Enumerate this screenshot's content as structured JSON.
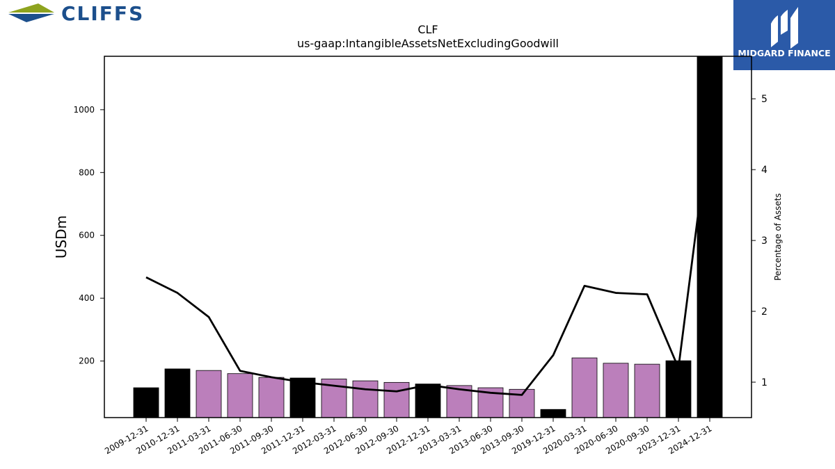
{
  "logos": {
    "left_brand": "CLIFFS",
    "right_brand": "MIDGARD FINANCE",
    "right_brand_bg": "#2b5aa8"
  },
  "chart_data": {
    "type": "bar",
    "title": "CLF",
    "subtitle": "us-gaap:IntangibleAssetsNetExcludingGoodwill",
    "ylabel": "USDm",
    "ylabel_right": "Percentage of Assets",
    "ylim": [
      20,
      1170
    ],
    "ylim_right": [
      0.5,
      5.6
    ],
    "y_ticks": [
      200,
      400,
      600,
      800,
      1000
    ],
    "y_ticks_right": [
      1,
      2,
      3,
      4,
      5
    ],
    "categories": [
      "2009-12-31",
      "2010-12-31",
      "2011-03-31",
      "2011-06-30",
      "2011-09-30",
      "2011-12-31",
      "2012-03-31",
      "2012-06-30",
      "2012-09-30",
      "2012-12-31",
      "2013-03-31",
      "2013-06-30",
      "2013-09-30",
      "2019-12-31",
      "2020-03-31",
      "2020-06-30",
      "2020-09-30",
      "2023-12-31",
      "2024-12-31"
    ],
    "series": [
      {
        "values": [
          115,
          175,
          170,
          160,
          148,
          146,
          143,
          137,
          132,
          127,
          122,
          115,
          110,
          46,
          210,
          193,
          190,
          201,
          1170
        ],
        "colors": [
          "#000000",
          "#000000",
          "#bb7fbb",
          "#bb7fbb",
          "#bb7fbb",
          "#000000",
          "#bb7fbb",
          "#bb7fbb",
          "#bb7fbb",
          "#000000",
          "#bb7fbb",
          "#bb7fbb",
          "#bb7fbb",
          "#000000",
          "#bb7fbb",
          "#bb7fbb",
          "#bb7fbb",
          "#000000",
          "#000000"
        ]
      },
      {
        "axis": "right",
        "type": "line",
        "color": "#000000",
        "values": [
          2.48,
          2.26,
          1.92,
          1.16,
          1.07,
          1.0,
          0.95,
          0.9,
          0.87,
          0.96,
          0.9,
          0.85,
          0.82,
          1.38,
          2.36,
          2.26,
          2.24,
          1.2,
          4.65
        ]
      }
    ],
    "grid": false,
    "legend": "none"
  }
}
